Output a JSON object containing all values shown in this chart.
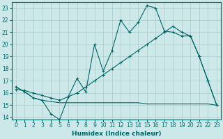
{
  "xlabel": "Humidex (Indice chaleur)",
  "bg_color": "#cce8e8",
  "grid_color": "#aacccc",
  "line_color": "#006666",
  "xlim": [
    -0.5,
    23.5
  ],
  "ylim": [
    13.8,
    23.5
  ],
  "yticks": [
    14,
    15,
    16,
    17,
    18,
    19,
    20,
    21,
    22,
    23
  ],
  "xticks": [
    0,
    1,
    2,
    3,
    4,
    5,
    6,
    7,
    8,
    9,
    10,
    11,
    12,
    13,
    14,
    15,
    16,
    17,
    18,
    19,
    20,
    21,
    22,
    23
  ],
  "line1_x": [
    0,
    1,
    2,
    3,
    4,
    5,
    6,
    7,
    8,
    9,
    10,
    11,
    12,
    13,
    14,
    15,
    16,
    17,
    18,
    19,
    20,
    21,
    22,
    23
  ],
  "line1_y": [
    16.5,
    16.1,
    15.6,
    15.4,
    14.3,
    13.8,
    15.7,
    17.2,
    16.1,
    20.0,
    17.8,
    19.5,
    22.0,
    21.0,
    21.8,
    23.2,
    23.0,
    21.1,
    21.0,
    20.7,
    20.7,
    19.0,
    17.0,
    15.0
  ],
  "line2_x": [
    0,
    1,
    2,
    3,
    4,
    5,
    6,
    7,
    8,
    9,
    10,
    11,
    12,
    13,
    14,
    15,
    16,
    17,
    18,
    19,
    20,
    21,
    22,
    23
  ],
  "line2_y": [
    16.3,
    16.2,
    16.0,
    15.8,
    15.6,
    15.4,
    15.7,
    16.0,
    16.5,
    17.0,
    17.5,
    18.0,
    18.5,
    19.0,
    19.5,
    20.0,
    20.5,
    21.0,
    21.5,
    21.0,
    20.7,
    19.0,
    17.0,
    15.0
  ],
  "line3_x": [
    0,
    1,
    2,
    3,
    4,
    5,
    6,
    7,
    8,
    9,
    10,
    11,
    12,
    13,
    14,
    15,
    16,
    17,
    18,
    19,
    20,
    21,
    22,
    23
  ],
  "line3_y": [
    16.5,
    16.1,
    15.6,
    15.4,
    15.3,
    15.2,
    15.2,
    15.2,
    15.2,
    15.2,
    15.2,
    15.2,
    15.2,
    15.2,
    15.2,
    15.1,
    15.1,
    15.1,
    15.1,
    15.1,
    15.1,
    15.1,
    15.1,
    15.0
  ]
}
